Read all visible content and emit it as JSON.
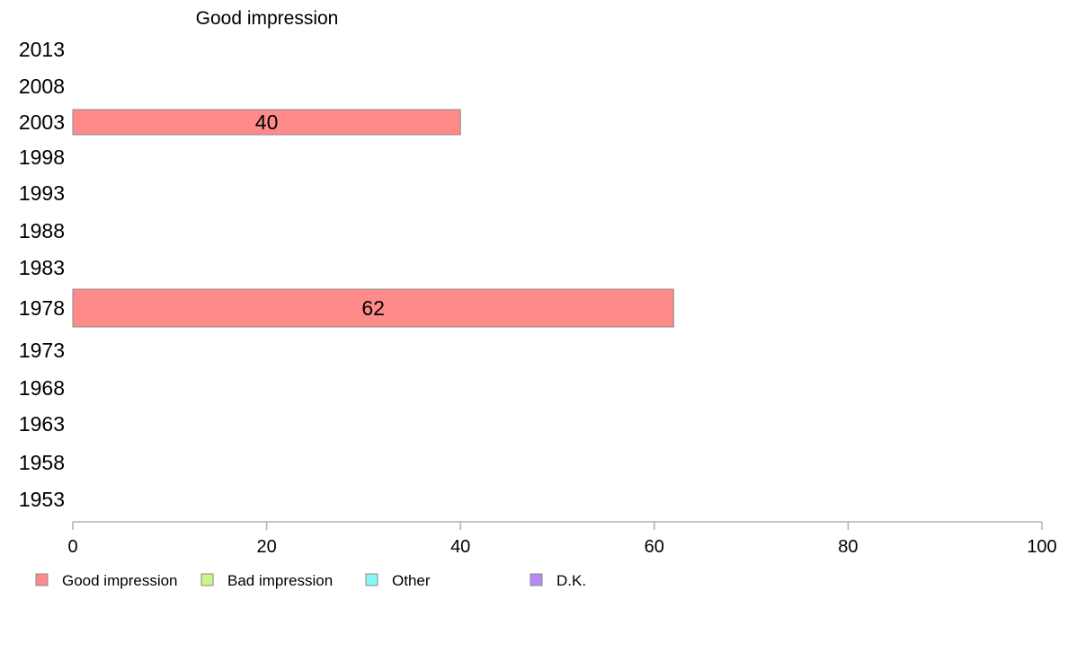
{
  "chart_data": {
    "type": "bar",
    "orientation": "horizontal",
    "title": "Good impression",
    "categories": [
      "2013",
      "2008",
      "2003",
      "1998",
      "1993",
      "1988",
      "1983",
      "1978",
      "1973",
      "1968",
      "1963",
      "1958",
      "1953"
    ],
    "series": [
      {
        "name": "Good impression",
        "color": "#ff8a8a",
        "values": [
          null,
          null,
          40,
          null,
          null,
          null,
          null,
          62,
          null,
          null,
          null,
          null,
          null
        ]
      }
    ],
    "xlim": [
      0,
      100
    ],
    "xticks": [
      "0",
      "20",
      "40",
      "60",
      "80",
      "100"
    ],
    "grid": false,
    "legend": {
      "placement": "bottom",
      "items": [
        {
          "label": "Good impression",
          "color": "#ff8a8a"
        },
        {
          "label": "Bad impression",
          "color": "#c9f78a"
        },
        {
          "label": "Other",
          "color": "#8af7f7"
        },
        {
          "label": "D.K.",
          "color": "#b88af7"
        }
      ]
    }
  }
}
